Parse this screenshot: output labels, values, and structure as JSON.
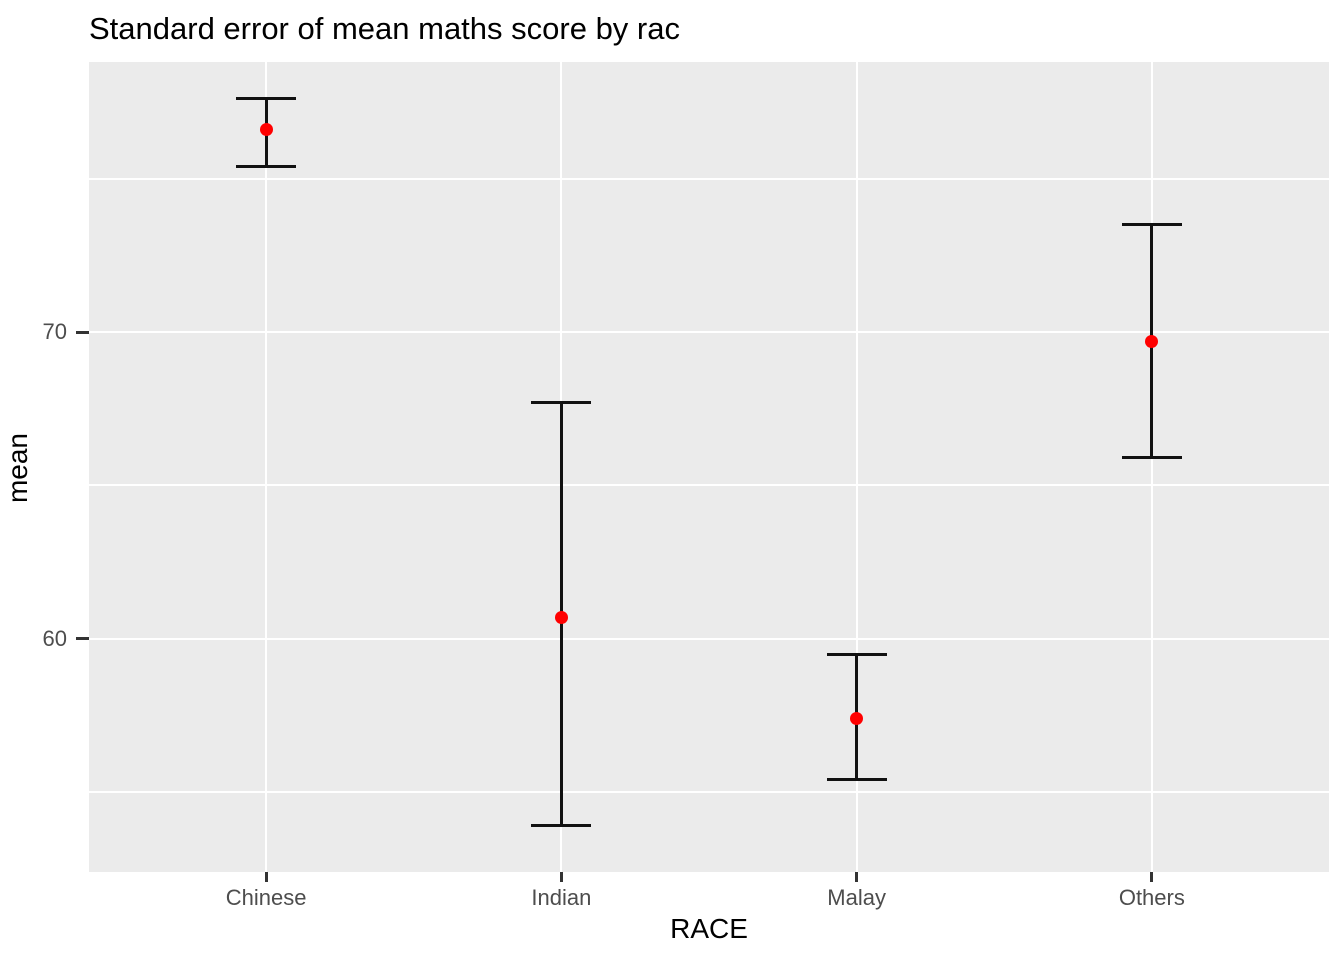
{
  "chart_data": {
    "type": "scatter",
    "title": "Standard error of mean maths score by rac",
    "xlabel": "RACE",
    "ylabel": "mean",
    "categories": [
      "Chinese",
      "Indian",
      "Malay",
      "Others"
    ],
    "series": [
      {
        "name": "mean maths score",
        "means": [
          76.6,
          60.7,
          57.4,
          69.7
        ],
        "upper": [
          77.6,
          67.7,
          59.5,
          73.5
        ],
        "lower": [
          75.4,
          53.9,
          55.4,
          65.9
        ]
      }
    ],
    "error_bars": true,
    "ylim": [
      52.4,
      78.8
    ],
    "yticks": [
      60,
      70
    ],
    "yticks_minor": [
      55,
      65,
      75
    ],
    "grid": true,
    "legend": false,
    "colors": {
      "point": "#ff0000",
      "errorbar": "#111111",
      "panel_bg": "#ebebeb",
      "gridline": "#ffffff",
      "tick_label": "#4d4d4d",
      "tick_mark": "#333333",
      "title": "#000000"
    }
  }
}
